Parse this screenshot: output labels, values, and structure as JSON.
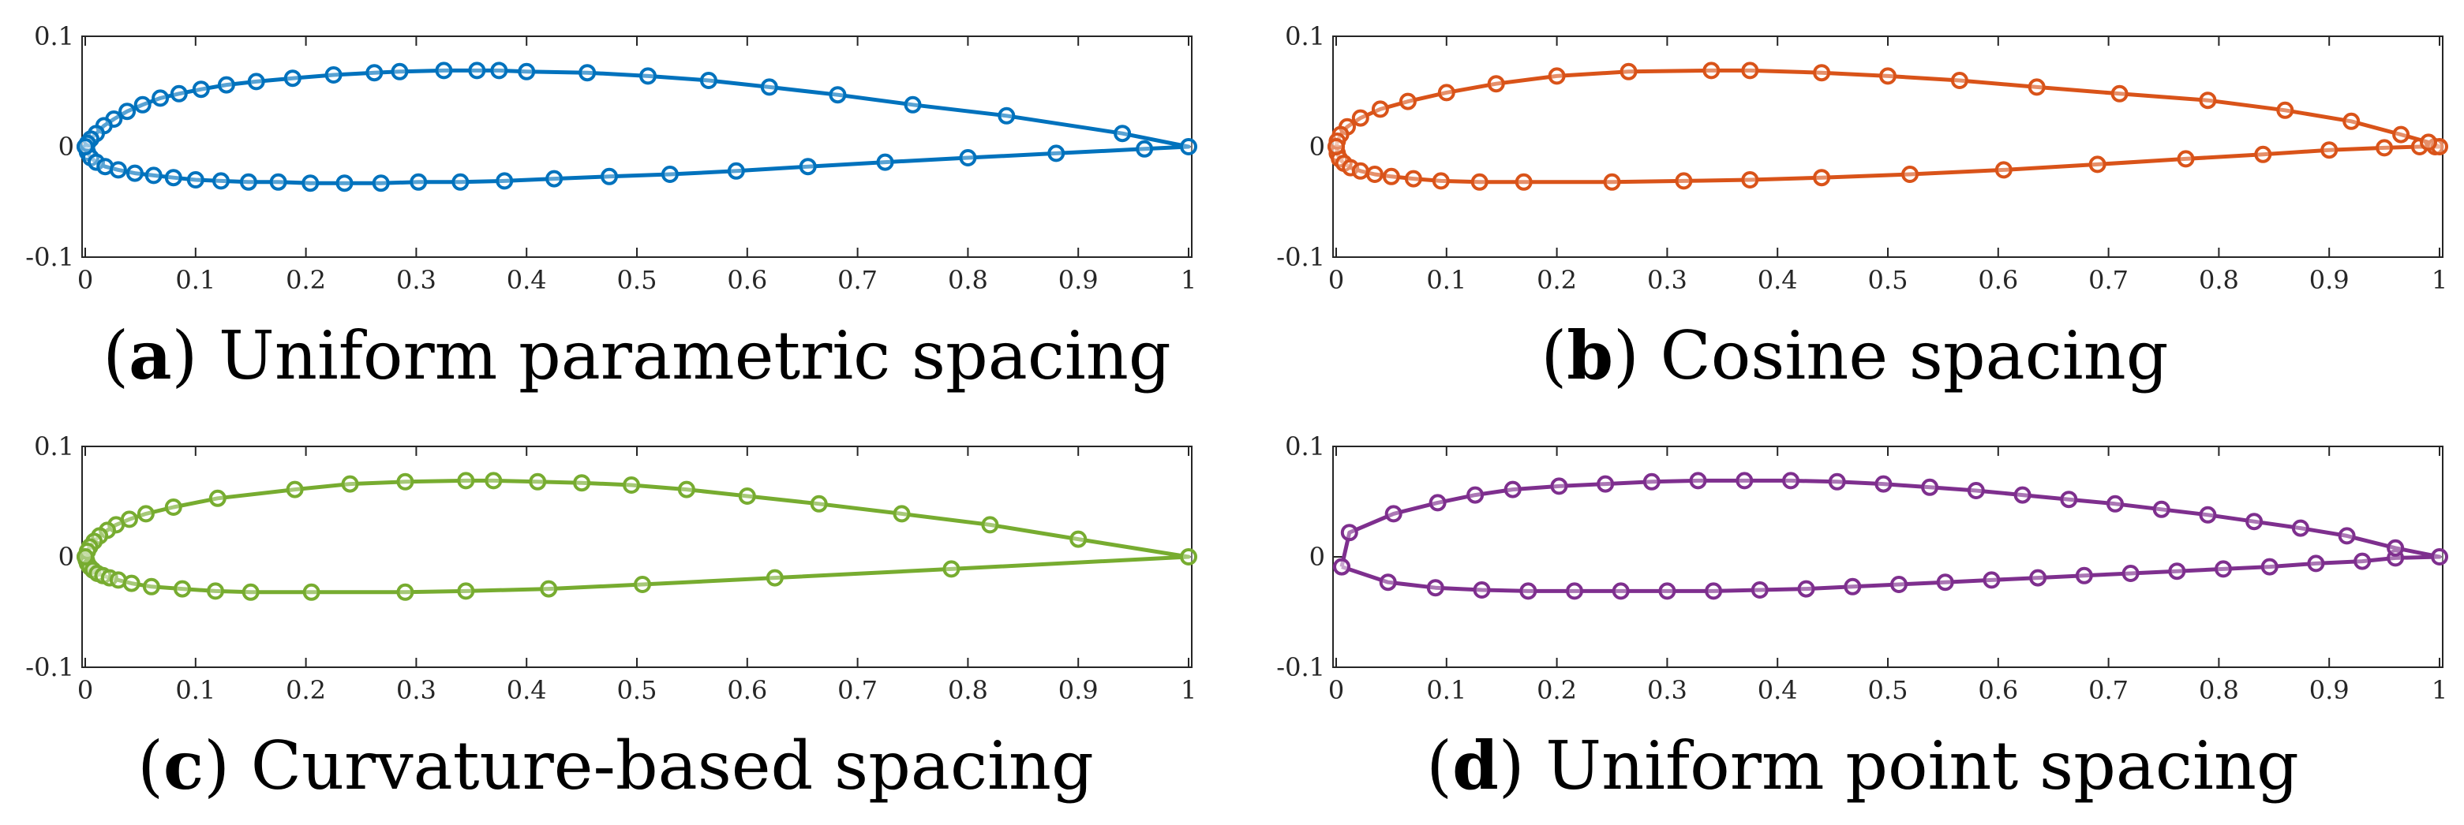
{
  "chart_data": [
    {
      "type": "line",
      "panel": "a",
      "caption_letter": "a",
      "caption_text": "Uniform parametric spacing",
      "color": "#0072BD",
      "xlim": [
        0,
        1
      ],
      "ylim": [
        -0.1,
        0.1
      ],
      "x_ticks": [
        "0",
        "0.1",
        "0.2",
        "0.3",
        "0.4",
        "0.5",
        "0.6",
        "0.7",
        "0.8",
        "0.9",
        "1"
      ],
      "y_ticks": [
        "0.1",
        "0",
        "-0.1"
      ],
      "series": [
        {
          "name": "airfoil",
          "x": [
            0,
            0.002,
            0.005,
            0.01,
            0.018,
            0.03,
            0.045,
            0.062,
            0.08,
            0.1,
            0.123,
            0.148,
            0.175,
            0.204,
            0.235,
            0.268,
            0.302,
            0.34,
            0.38,
            0.425,
            0.475,
            0.53,
            0.59,
            0.655,
            0.725,
            0.8,
            0.88,
            0.96,
            1,
            0.94,
            0.835,
            0.75,
            0.682,
            0.62,
            0.565,
            0.51,
            0.455,
            0.4,
            0.375,
            0.355,
            0.325,
            0.285,
            0.262,
            0.225,
            0.188,
            0.155,
            0.128,
            0.105,
            0.085,
            0.068,
            0.052,
            0.038,
            0.026,
            0.017,
            0.01,
            0.005,
            0.002,
            0
          ],
          "y": [
            0,
            -0.005,
            -0.01,
            -0.014,
            -0.018,
            -0.021,
            -0.024,
            -0.026,
            -0.028,
            -0.03,
            -0.031,
            -0.032,
            -0.032,
            -0.033,
            -0.033,
            -0.033,
            -0.032,
            -0.032,
            -0.031,
            -0.029,
            -0.027,
            -0.025,
            -0.022,
            -0.018,
            -0.014,
            -0.01,
            -0.006,
            -0.002,
            0,
            0.012,
            0.028,
            0.038,
            0.047,
            0.054,
            0.06,
            0.064,
            0.067,
            0.068,
            0.069,
            0.069,
            0.069,
            0.068,
            0.067,
            0.065,
            0.062,
            0.059,
            0.056,
            0.052,
            0.048,
            0.044,
            0.038,
            0.032,
            0.025,
            0.019,
            0.012,
            0.007,
            0.003,
            0
          ]
        }
      ]
    },
    {
      "type": "line",
      "panel": "b",
      "caption_letter": "b",
      "caption_text": "Cosine spacing",
      "color": "#D95319",
      "xlim": [
        0,
        1
      ],
      "ylim": [
        -0.1,
        0.1
      ],
      "x_ticks": [
        "0",
        "0.1",
        "0.2",
        "0.3",
        "0.4",
        "0.5",
        "0.6",
        "0.7",
        "0.8",
        "0.9",
        "1"
      ],
      "y_ticks": [
        "0.1",
        "0",
        "-0.1"
      ],
      "series": [
        {
          "name": "airfoil",
          "x": [
            0,
            0.001,
            0.003,
            0.007,
            0.013,
            0.022,
            0.035,
            0.05,
            0.07,
            0.095,
            0.13,
            0.17,
            0.25,
            0.315,
            0.375,
            0.44,
            0.52,
            0.605,
            0.69,
            0.77,
            0.84,
            0.9,
            0.95,
            0.982,
            0.996,
            1,
            0.99,
            0.965,
            0.92,
            0.86,
            0.79,
            0.71,
            0.635,
            0.565,
            0.5,
            0.44,
            0.375,
            0.34,
            0.265,
            0.2,
            0.145,
            0.1,
            0.065,
            0.04,
            0.022,
            0.01,
            0.004,
            0.001,
            0
          ],
          "y": [
            0,
            -0.006,
            -0.011,
            -0.015,
            -0.019,
            -0.022,
            -0.025,
            -0.027,
            -0.029,
            -0.031,
            -0.032,
            -0.032,
            -0.032,
            -0.031,
            -0.03,
            -0.028,
            -0.025,
            -0.021,
            -0.016,
            -0.011,
            -0.007,
            -0.003,
            -0.001,
            0,
            0,
            0,
            0.004,
            0.011,
            0.023,
            0.033,
            0.042,
            0.048,
            0.054,
            0.06,
            0.064,
            0.067,
            0.069,
            0.069,
            0.068,
            0.064,
            0.057,
            0.049,
            0.041,
            0.034,
            0.026,
            0.018,
            0.011,
            0.005,
            0
          ]
        }
      ]
    },
    {
      "type": "line",
      "panel": "c",
      "caption_letter": "c",
      "caption_text": "Curvature-based spacing",
      "color": "#77AC30",
      "xlim": [
        0,
        1
      ],
      "ylim": [
        -0.1,
        0.1
      ],
      "x_ticks": [
        "0",
        "0.1",
        "0.2",
        "0.3",
        "0.4",
        "0.5",
        "0.6",
        "0.7",
        "0.8",
        "0.9",
        "1"
      ],
      "y_ticks": [
        "0.1",
        "0",
        "-0.1"
      ],
      "series": [
        {
          "name": "airfoil",
          "x": [
            0,
            0.001,
            0.002,
            0.004,
            0.007,
            0.011,
            0.016,
            0.022,
            0.03,
            0.042,
            0.06,
            0.088,
            0.118,
            0.15,
            0.205,
            0.29,
            0.345,
            0.42,
            0.505,
            0.625,
            0.785,
            1,
            0.9,
            0.82,
            0.74,
            0.665,
            0.6,
            0.545,
            0.495,
            0.45,
            0.41,
            0.37,
            0.345,
            0.29,
            0.24,
            0.19,
            0.12,
            0.08,
            0.055,
            0.04,
            0.028,
            0.02,
            0.013,
            0.008,
            0.004,
            0.002,
            0
          ],
          "y": [
            0,
            -0.003,
            -0.006,
            -0.009,
            -0.012,
            -0.015,
            -0.017,
            -0.019,
            -0.021,
            -0.024,
            -0.027,
            -0.029,
            -0.031,
            -0.032,
            -0.032,
            -0.032,
            -0.031,
            -0.029,
            -0.025,
            -0.019,
            -0.011,
            0,
            0.016,
            0.029,
            0.039,
            0.048,
            0.055,
            0.061,
            0.065,
            0.067,
            0.068,
            0.069,
            0.069,
            0.068,
            0.066,
            0.061,
            0.053,
            0.045,
            0.039,
            0.034,
            0.029,
            0.024,
            0.019,
            0.014,
            0.009,
            0.005,
            0
          ]
        }
      ]
    },
    {
      "type": "line",
      "panel": "d",
      "caption_letter": "d",
      "caption_text": "Uniform point spacing",
      "color": "#7E2F8E",
      "xlim": [
        0,
        1
      ],
      "ylim": [
        -0.1,
        0.1
      ],
      "x_ticks": [
        "0",
        "0.1",
        "0.2",
        "0.3",
        "0.4",
        "0.5",
        "0.6",
        "0.7",
        "0.8",
        "0.9",
        "1"
      ],
      "y_ticks": [
        "0.1",
        "0",
        "-0.1"
      ],
      "series": [
        {
          "name": "airfoil",
          "x": [
            0.005,
            0.047,
            0.09,
            0.132,
            0.174,
            0.216,
            0.258,
            0.3,
            0.342,
            0.384,
            0.426,
            0.468,
            0.51,
            0.552,
            0.594,
            0.636,
            0.678,
            0.72,
            0.762,
            0.804,
            0.846,
            0.888,
            0.93,
            0.96,
            1,
            0.96,
            0.916,
            0.874,
            0.832,
            0.79,
            0.748,
            0.706,
            0.664,
            0.622,
            0.58,
            0.538,
            0.496,
            0.454,
            0.412,
            0.37,
            0.328,
            0.286,
            0.244,
            0.202,
            0.16,
            0.126,
            0.092,
            0.052,
            0.012,
            0.005
          ],
          "y": [
            -0.009,
            -0.023,
            -0.028,
            -0.03,
            -0.031,
            -0.031,
            -0.031,
            -0.031,
            -0.031,
            -0.03,
            -0.029,
            -0.027,
            -0.025,
            -0.023,
            -0.021,
            -0.019,
            -0.017,
            -0.015,
            -0.013,
            -0.011,
            -0.009,
            -0.006,
            -0.004,
            -0.001,
            0,
            0.008,
            0.019,
            0.026,
            0.032,
            0.038,
            0.043,
            0.048,
            0.052,
            0.056,
            0.06,
            0.063,
            0.066,
            0.068,
            0.069,
            0.069,
            0.069,
            0.068,
            0.066,
            0.064,
            0.061,
            0.056,
            0.049,
            0.039,
            0.022,
            -0.009
          ]
        }
      ]
    }
  ]
}
